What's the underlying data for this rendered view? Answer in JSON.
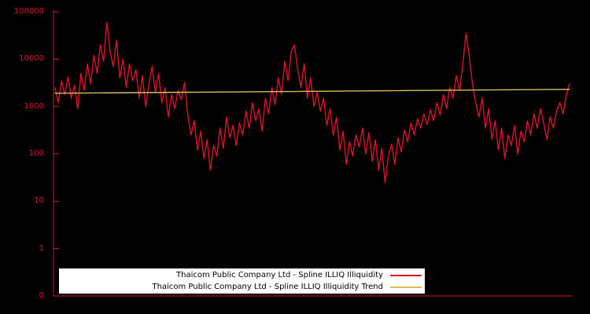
{
  "chart_data": {
    "type": "line",
    "title": "",
    "xlabel": "",
    "ylabel": "",
    "background_color": "#000000",
    "axis_color": "#dc1426",
    "y_axis": {
      "scale": "log",
      "tick_labels": [
        "100000",
        "10000",
        "1000",
        "100",
        "10",
        "1",
        "0"
      ],
      "tick_color": "#dc1426",
      "top_value": 100000
    },
    "x_axis": {
      "tick_labels": [],
      "visible_labels": false
    },
    "legend_position": "bottom-center",
    "series": [
      {
        "name": "Thaicom Public Company Ltd - Spline ILLIQ Illiquidity",
        "color": "#dc1426",
        "values": [
          2500,
          1200,
          3500,
          1800,
          4200,
          1500,
          2800,
          900,
          5000,
          2200,
          8000,
          3000,
          12000,
          5000,
          20000,
          9000,
          60000,
          15000,
          7000,
          25000,
          4000,
          10000,
          2500,
          8000,
          3500,
          6000,
          1500,
          4500,
          1000,
          3000,
          7000,
          2000,
          5000,
          1200,
          2500,
          600,
          1800,
          900,
          2200,
          1400,
          3200,
          700,
          250,
          500,
          120,
          300,
          80,
          200,
          45,
          150,
          90,
          350,
          130,
          600,
          220,
          400,
          150,
          450,
          250,
          800,
          350,
          1200,
          500,
          900,
          300,
          1500,
          700,
          2500,
          1100,
          4000,
          1800,
          9000,
          3500,
          15000,
          20000,
          6000,
          2500,
          8000,
          1500,
          4000,
          1000,
          2000,
          800,
          1500,
          400,
          900,
          250,
          600,
          120,
          300,
          60,
          180,
          90,
          250,
          140,
          350,
          100,
          280,
          70,
          200,
          45,
          130,
          25,
          90,
          160,
          60,
          220,
          110,
          320,
          180,
          450,
          250,
          550,
          350,
          700,
          420,
          850,
          500,
          1200,
          650,
          1800,
          900,
          2500,
          1500,
          4500,
          2200,
          8000,
          35000,
          12000,
          3000,
          1200,
          600,
          1500,
          350,
          900,
          200,
          500,
          120,
          350,
          80,
          250,
          150,
          400,
          100,
          300,
          180,
          500,
          250,
          700,
          350,
          900,
          450,
          200,
          600,
          350,
          800,
          1200,
          700,
          1800,
          3000
        ]
      },
      {
        "name": "Thaicom Public Company Ltd - Spline ILLIQ Illiquidity Trend",
        "color": "#d6c05a",
        "values": [
          1900,
          2300
        ]
      }
    ]
  },
  "legend": {
    "items": [
      {
        "label": "Thaicom Public Company Ltd - Spline ILLIQ Illiquidity",
        "color": "#dc1426"
      },
      {
        "label": "Thaicom Public Company Ltd - Spline ILLIQ Illiquidity Trend",
        "color": "#d6c05a"
      }
    ]
  }
}
